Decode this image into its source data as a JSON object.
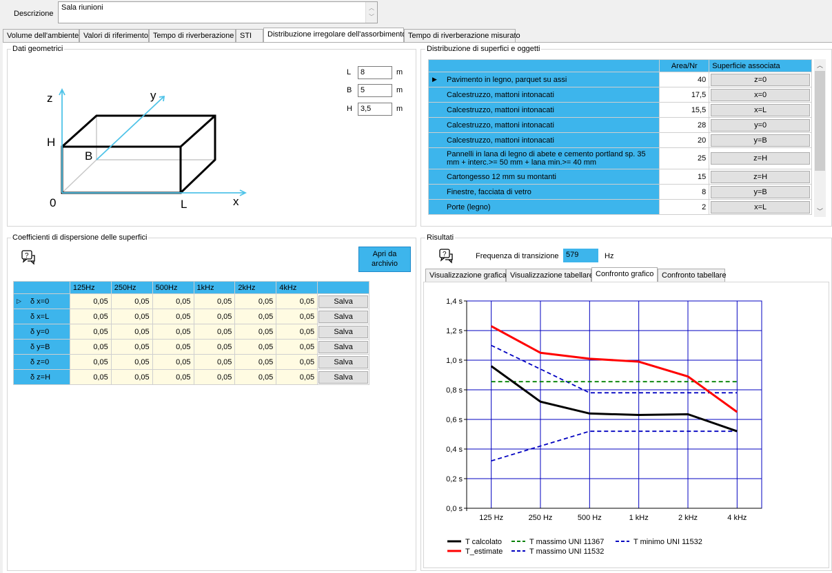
{
  "description": {
    "label": "Descrizione",
    "value": "Sala riunioni"
  },
  "tabs": [
    {
      "label": "Volume dell'ambiente"
    },
    {
      "label": "Valori di riferimento"
    },
    {
      "label": "Tempo di riverberazione"
    },
    {
      "label": "STI"
    },
    {
      "label": "Distribuzione irregolare dell'assorbimento"
    },
    {
      "label": "Tempo di riverberazione misurato"
    }
  ],
  "geometry": {
    "title": "Dati geometrici",
    "fields": [
      {
        "label": "L",
        "value": "8",
        "unit": "m"
      },
      {
        "label": "B",
        "value": "5",
        "unit": "m"
      },
      {
        "label": "H",
        "value": "3,5",
        "unit": "m"
      }
    ],
    "diagram": {
      "z": "z",
      "y": "y",
      "x": "x",
      "H": "H",
      "B": "B",
      "O": "0",
      "L": "L"
    }
  },
  "surfaces": {
    "title": "Distribuzione di superfici e oggetti",
    "headers": {
      "area": "Area/Nr",
      "assoc": "Superficie associata"
    },
    "rows": [
      {
        "name": "Pavimento in legno, parquet su assi",
        "area": "40",
        "assoc": "z=0"
      },
      {
        "name": "Calcestruzzo, mattoni intonacati",
        "area": "17,5",
        "assoc": "x=0"
      },
      {
        "name": "Calcestruzzo, mattoni intonacati",
        "area": "15,5",
        "assoc": "x=L"
      },
      {
        "name": "Calcestruzzo, mattoni intonacati",
        "area": "28",
        "assoc": "y=0"
      },
      {
        "name": "Calcestruzzo, mattoni intonacati",
        "area": "20",
        "assoc": "y=B"
      },
      {
        "name": "Pannelli in lana di legno di abete e cemento portland sp. 35 mm + interc.>= 50 mm + lana min.>= 40 mm",
        "area": "25",
        "assoc": "z=H"
      },
      {
        "name": "Cartongesso 12 mm su montanti",
        "area": "15",
        "assoc": "z=H"
      },
      {
        "name": "Finestre, facciata di vetro",
        "area": "8",
        "assoc": "y=B"
      },
      {
        "name": "Porte (legno)",
        "area": "2",
        "assoc": "x=L"
      }
    ]
  },
  "dispersion": {
    "title": "Coefficienti di dispersione delle superfici",
    "open_button": "Apri da archivio",
    "freq_headers": [
      "125Hz",
      "250Hz",
      "500Hz",
      "1kHz",
      "2kHz",
      "4kHz"
    ],
    "rows": [
      {
        "name": "δ x=0",
        "values": [
          "0,05",
          "0,05",
          "0,05",
          "0,05",
          "0,05",
          "0,05"
        ],
        "button": "Salva"
      },
      {
        "name": "δ x=L",
        "values": [
          "0,05",
          "0,05",
          "0,05",
          "0,05",
          "0,05",
          "0,05"
        ],
        "button": "Salva"
      },
      {
        "name": "δ y=0",
        "values": [
          "0,05",
          "0,05",
          "0,05",
          "0,05",
          "0,05",
          "0,05"
        ],
        "button": "Salva"
      },
      {
        "name": "δ y=B",
        "values": [
          "0,05",
          "0,05",
          "0,05",
          "0,05",
          "0,05",
          "0,05"
        ],
        "button": "Salva"
      },
      {
        "name": "δ z=0",
        "values": [
          "0,05",
          "0,05",
          "0,05",
          "0,05",
          "0,05",
          "0,05"
        ],
        "button": "Salva"
      },
      {
        "name": "δ z=H",
        "values": [
          "0,05",
          "0,05",
          "0,05",
          "0,05",
          "0,05",
          "0,05"
        ],
        "button": "Salva"
      }
    ]
  },
  "results": {
    "title": "Risultati",
    "transition_label": "Frequenza di transizione",
    "transition_value": "579",
    "transition_unit": "Hz",
    "tabs": [
      {
        "label": "Visualizzazione grafica"
      },
      {
        "label": "Visualizzazione tabellare"
      },
      {
        "label": "Confronto grafico"
      },
      {
        "label": "Confronto tabellare"
      }
    ]
  },
  "chart_data": {
    "type": "line",
    "categories": [
      "125 Hz",
      "250 Hz",
      "500 Hz",
      "1 kHz",
      "2 kHz",
      "4 kHz"
    ],
    "yticks": [
      "0,0 s",
      "0,2 s",
      "0,4 s",
      "0,6 s",
      "0,8 s",
      "1,0 s",
      "1,2 s",
      "1,4 s"
    ],
    "ylim": [
      0,
      1.4
    ],
    "grid": true,
    "legend_position": "bottom",
    "series": [
      {
        "name": "T calcolato",
        "color": "#000000",
        "dash": "solid",
        "values": [
          0.96,
          0.72,
          0.64,
          0.63,
          0.635,
          0.52
        ]
      },
      {
        "name": "T_estimate",
        "color": "#ff0000",
        "dash": "solid",
        "values": [
          1.23,
          1.05,
          1.01,
          0.99,
          0.89,
          0.65
        ]
      },
      {
        "name": "T massimo UNI 11367",
        "color": "#008000",
        "dash": "dashed",
        "values": [
          0.855,
          0.855,
          0.855,
          0.855,
          0.855,
          0.855
        ]
      },
      {
        "name": "T massimo UNI 11532",
        "color": "#0000c0",
        "dash": "dashed",
        "values": [
          1.1,
          0.94,
          0.78,
          0.78,
          0.78,
          0.78
        ]
      },
      {
        "name": "T minimo UNI 11532",
        "color": "#0000c0",
        "dash": "dashed",
        "values": [
          0.32,
          0.42,
          0.52,
          0.52,
          0.52,
          0.52
        ]
      }
    ]
  }
}
